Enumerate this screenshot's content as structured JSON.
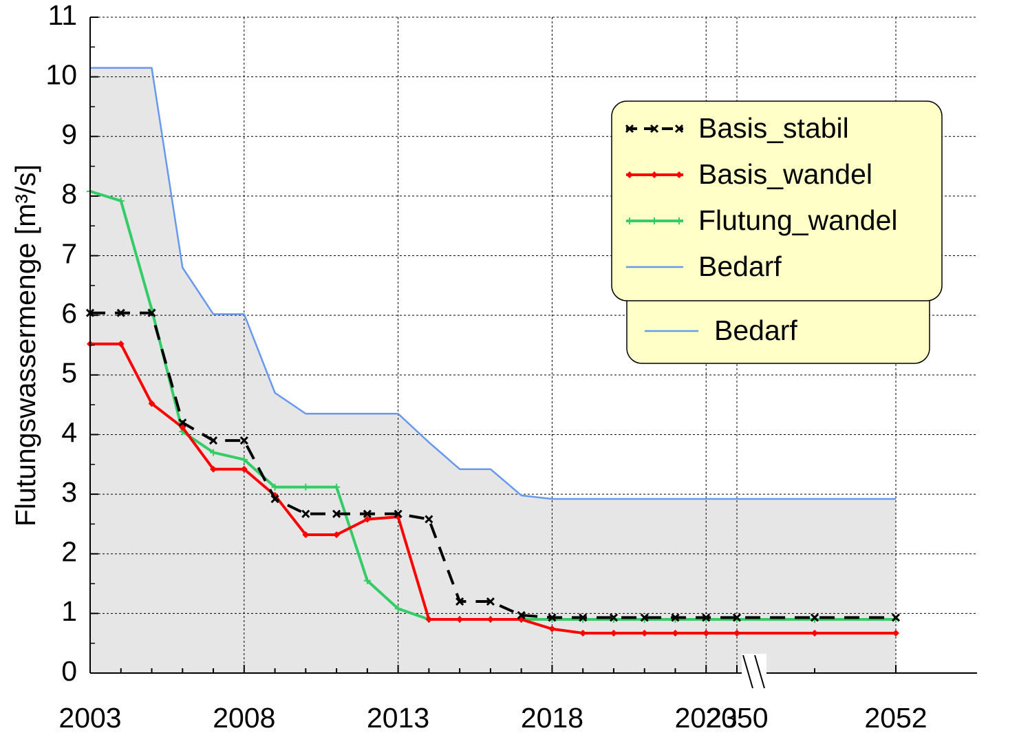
{
  "chart_data": {
    "type": "line",
    "y_label": "Flutungswassermenge [m³/s]",
    "categories": [
      "2003",
      null,
      null,
      null,
      null,
      "2008",
      null,
      null,
      null,
      null,
      "2013",
      null,
      null,
      null,
      null,
      "2018",
      null,
      null,
      null,
      null,
      "2023",
      "2050",
      null,
      "2052"
    ],
    "ylim": [
      0,
      11
    ],
    "yticks": [
      0,
      1,
      2,
      3,
      4,
      5,
      6,
      7,
      8,
      9,
      10,
      11
    ],
    "grid": true,
    "legend": "upper right",
    "series": [
      {
        "name": "Basis_stabil",
        "color": "#000000",
        "marker": "x",
        "dash": true,
        "values": [
          6.04,
          6.04,
          6.04,
          4.2,
          3.9,
          3.9,
          2.92,
          2.67,
          2.67,
          2.67,
          2.67,
          2.58,
          1.2,
          1.2,
          0.97,
          0.93,
          0.93,
          0.93,
          0.93,
          0.93,
          0.93,
          0.93,
          0.93,
          0.93
        ]
      },
      {
        "name": "Basis_wandel",
        "color": "#ff0000",
        "marker": "diamond",
        "dash": false,
        "values": [
          5.52,
          5.52,
          4.52,
          4.12,
          3.42,
          3.42,
          2.98,
          2.32,
          2.32,
          2.58,
          2.62,
          0.9,
          0.9,
          0.9,
          0.9,
          0.74,
          0.67,
          0.67,
          0.67,
          0.67,
          0.67,
          0.67,
          0.67,
          0.67
        ]
      },
      {
        "name": "Flutung_wandel",
        "color": "#33cc66",
        "marker": "plus",
        "dash": false,
        "values": [
          8.08,
          7.92,
          6.1,
          4.05,
          3.7,
          3.58,
          3.12,
          3.12,
          3.12,
          1.55,
          1.08,
          0.9,
          0.9,
          0.9,
          0.9,
          0.9,
          0.9,
          0.9,
          0.9,
          0.9,
          0.9,
          0.9,
          0.9,
          0.9
        ]
      },
      {
        "name": "Bedarf",
        "color": "#6699ee",
        "marker": null,
        "dash": false,
        "fill_color": "#e6e6e6",
        "values": [
          10.15,
          10.15,
          10.15,
          6.8,
          6.02,
          6.02,
          4.7,
          4.35,
          4.35,
          4.35,
          4.35,
          3.87,
          3.42,
          3.42,
          2.98,
          2.92,
          2.92,
          2.92,
          2.92,
          2.92,
          2.92,
          2.92,
          2.92,
          2.92
        ]
      }
    ]
  }
}
